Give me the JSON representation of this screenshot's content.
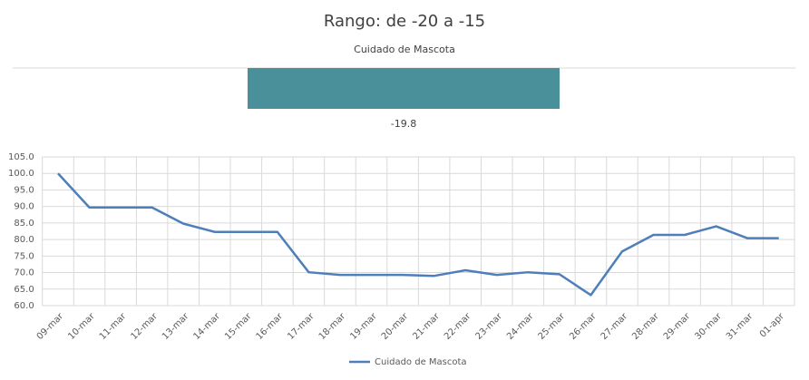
{
  "chart_data": [
    {
      "type": "bar",
      "title": "Rango: de -20 a -15",
      "subtitle": "Cuidado de Mascota",
      "values": [
        -19.8
      ],
      "color": "#4a909b"
    },
    {
      "type": "line",
      "categories": [
        "09-mar",
        "10-mar",
        "11-mar",
        "12-mar",
        "13-mar",
        "14-mar",
        "15-mar",
        "16-mar",
        "17-mar",
        "18-mar",
        "19-mar",
        "20-mar",
        "21-mar",
        "22-mar",
        "23-mar",
        "24-mar",
        "25-mar",
        "26-mar",
        "27-mar",
        "28-mar",
        "29-mar",
        "30-mar",
        "31-mar",
        "01-apr"
      ],
      "series": [
        {
          "name": "Cuidado de Mascota",
          "color": "#4f7fba",
          "values": [
            100,
            89.7,
            89.7,
            89.7,
            84.8,
            82.3,
            82.3,
            82.3,
            70.1,
            69.3,
            69.3,
            69.3,
            69.0,
            70.7,
            69.3,
            70.1,
            69.5,
            63.2,
            76.4,
            81.4,
            81.4,
            84.0,
            80.4,
            80.4
          ]
        }
      ],
      "ylim": [
        60,
        105
      ],
      "yticks": [
        {
          "value": 60,
          "label": "60.0"
        },
        {
          "value": 65,
          "label": "65.0"
        },
        {
          "value": 70,
          "label": "70.0"
        },
        {
          "value": 75,
          "label": "75.0"
        },
        {
          "value": 80,
          "label": "80.0"
        },
        {
          "value": 85,
          "label": "85.0"
        },
        {
          "value": 90,
          "label": "90.0"
        },
        {
          "value": 95,
          "label": "95.0"
        },
        {
          "value": 100,
          "label": "100.0"
        },
        {
          "value": 105,
          "label": "105.0"
        }
      ],
      "grid": true,
      "legend": "bottom"
    }
  ]
}
